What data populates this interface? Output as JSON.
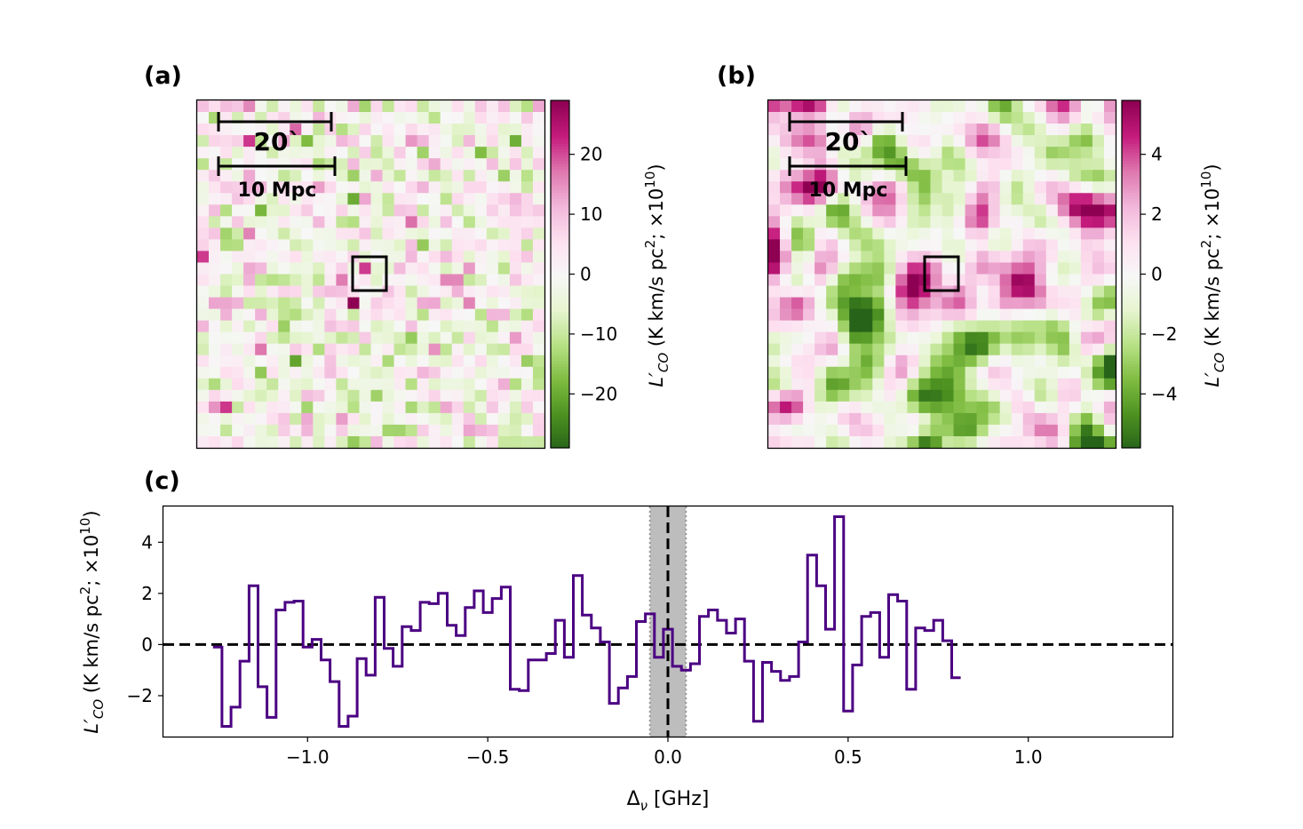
{
  "figure": {
    "panel_a_label": "(a)",
    "panel_b_label": "(b)",
    "panel_c_label": "(c)"
  },
  "colors": {
    "step_line": "#4b0082",
    "shaded_band": "#bdbdbd",
    "colormap": [
      "#276419",
      "#4d9221",
      "#7fbc41",
      "#b8e186",
      "#e6f5d0",
      "#f7f7f7",
      "#fde0ef",
      "#f1b6da",
      "#de77ae",
      "#c51b7d",
      "#8e0152"
    ]
  },
  "chart_data": [
    {
      "type": "heatmap",
      "panel": "(a)",
      "grid": [
        30,
        30
      ],
      "vlim": [
        -29,
        29
      ],
      "colorbar_ticks": [
        "−20",
        "−10",
        "0",
        "10",
        "20"
      ],
      "colorbar_tick_values": [
        -20,
        -10,
        0,
        10,
        20
      ],
      "colorbar_label_main": "L′",
      "colorbar_label_sub": "CO",
      "colorbar_label_rest": " (K km/s pc",
      "colorbar_label_sup": "2",
      "colorbar_label_rest2": "; ×10",
      "colorbar_label_sup2": "10",
      "colorbar_label_end": ")",
      "angular_scale_label": "20`",
      "physical_scale_label": "10 Mpc",
      "seed": 7,
      "smooth": 0,
      "hot_spot_value": 29
    },
    {
      "type": "heatmap",
      "panel": "(b)",
      "grid": [
        30,
        30
      ],
      "vlim": [
        -5.8,
        5.8
      ],
      "colorbar_ticks": [
        "−4",
        "−2",
        "0",
        "2",
        "4"
      ],
      "colorbar_tick_values": [
        -4,
        -2,
        0,
        2,
        4
      ],
      "colorbar_label_main": "L′",
      "colorbar_label_sub": "CO",
      "colorbar_label_rest": " (K km/s pc",
      "colorbar_label_sup": "2",
      "colorbar_label_rest2": "; ×10",
      "colorbar_label_sup2": "10",
      "colorbar_label_end": ")",
      "angular_scale_label": "20`",
      "physical_scale_label": "10 Mpc",
      "seed": 7,
      "smooth": 1
    },
    {
      "type": "line",
      "panel": "(c)",
      "step": true,
      "x_start": -1.25,
      "x_step": 0.025,
      "values": [
        -0.1,
        -3.2,
        -2.45,
        -0.65,
        2.3,
        -1.65,
        -2.85,
        1.35,
        1.65,
        1.7,
        -0.1,
        0.2,
        -0.6,
        -1.45,
        -3.2,
        -2.8,
        -0.55,
        -1.2,
        1.85,
        -0.15,
        -0.85,
        0.7,
        0.55,
        1.65,
        1.6,
        2.0,
        0.75,
        0.35,
        1.45,
        2.1,
        1.25,
        1.8,
        2.25,
        -1.75,
        -1.8,
        -0.6,
        -0.6,
        -0.35,
        0.95,
        -0.5,
        2.7,
        1.15,
        0.65,
        0.1,
        -2.3,
        -1.7,
        -1.25,
        0.9,
        1.2,
        -0.5,
        0.6,
        -0.85,
        -1.0,
        -0.75,
        1.1,
        1.35,
        0.95,
        0.45,
        1.0,
        -0.65,
        -3.0,
        -0.7,
        -1.05,
        -1.4,
        -1.25,
        0.1,
        3.5,
        2.3,
        0.6,
        5.0,
        -2.6,
        -0.8,
        1.1,
        1.25,
        -0.5,
        1.95,
        1.7,
        -1.75,
        0.65,
        0.55,
        0.95,
        0.15,
        -1.3
      ],
      "xlim": [
        -1.4,
        1.4
      ],
      "ylim": [
        -3.6,
        5.4
      ],
      "xticks": [
        -1.0,
        -0.5,
        0.0,
        0.5,
        1.0
      ],
      "xtick_labels": [
        "−1.0",
        "−0.5",
        "0.0",
        "0.5",
        "1.0"
      ],
      "yticks": [
        -2,
        0,
        2,
        4
      ],
      "ytick_labels": [
        "−2",
        "0",
        "2",
        "4"
      ],
      "xlabel_main": "Δ",
      "xlabel_sub": "ν",
      "xlabel_rest": " [GHz]",
      "ylabel_main": "L′",
      "ylabel_sub": "CO",
      "ylabel_rest": " (K km/s pc",
      "ylabel_sup": "2",
      "ylabel_rest2": "; ×10",
      "ylabel_sup2": "10",
      "ylabel_end": ")",
      "shaded_band": [
        -0.05,
        0.05
      ],
      "zero_line": 0,
      "center_line": 0
    }
  ]
}
